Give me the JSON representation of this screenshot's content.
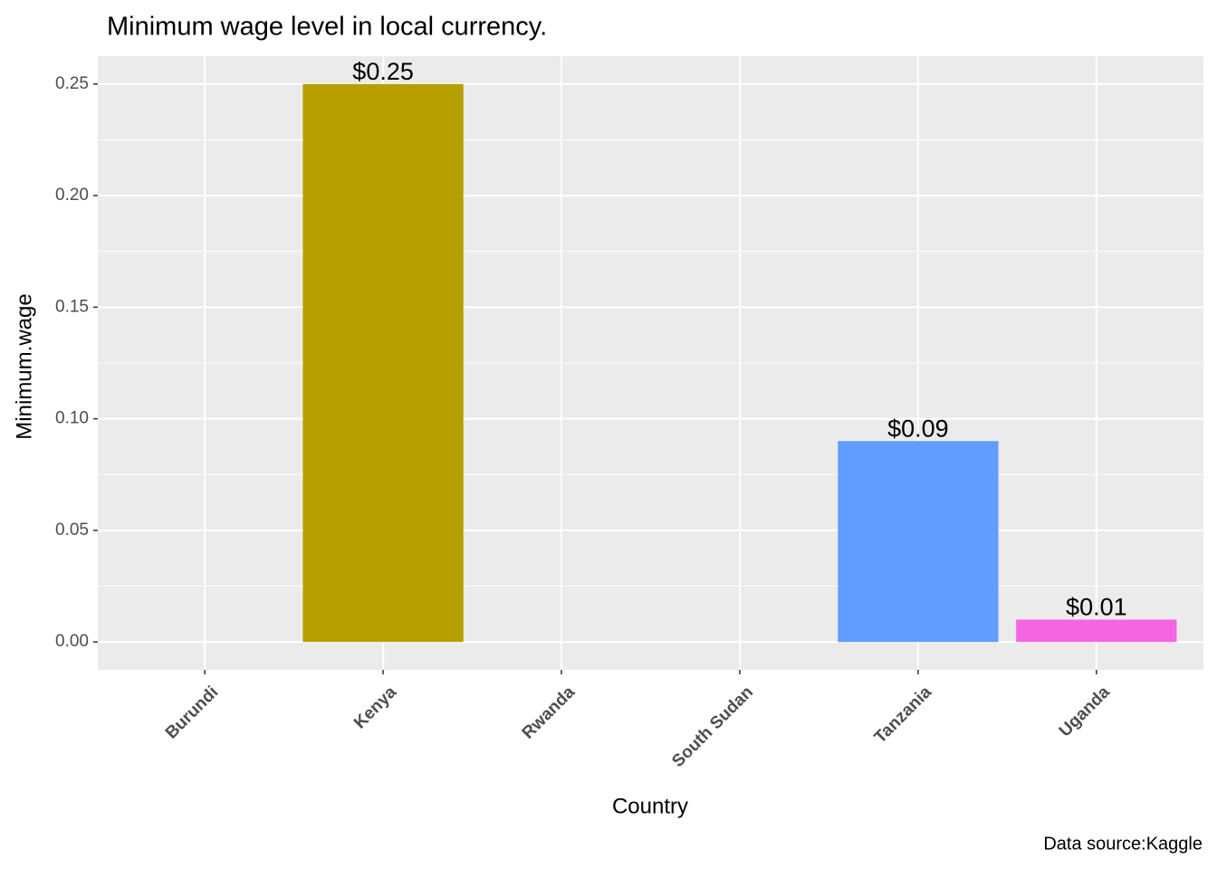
{
  "chart_data": {
    "type": "bar",
    "title": "Minimum wage level in local currency.",
    "x_label": "Country",
    "y_label": "Minimum.wage",
    "caption": "Data source:Kaggle",
    "categories": [
      "Burundi",
      "Kenya",
      "Rwanda",
      "South Sudan",
      "Tanzania",
      "Uganda"
    ],
    "values": [
      null,
      0.25,
      null,
      null,
      0.09,
      0.01
    ],
    "value_labels": [
      null,
      "$0.25",
      null,
      null,
      "$0.09",
      "$0.01"
    ],
    "colors": [
      null,
      "#B79F00",
      null,
      null,
      "#619CFF",
      "#F564E3"
    ],
    "ylim": [
      -0.0125,
      0.2625
    ],
    "yticks": [
      {
        "value": 0,
        "label": "0.00"
      },
      {
        "value": 0.05,
        "label": "0.05"
      },
      {
        "value": 0.1,
        "label": "0.10"
      },
      {
        "value": 0.15,
        "label": "0.15"
      },
      {
        "value": 0.2,
        "label": "0.20"
      },
      {
        "value": 0.25,
        "label": "0.25"
      }
    ],
    "grid": true
  }
}
